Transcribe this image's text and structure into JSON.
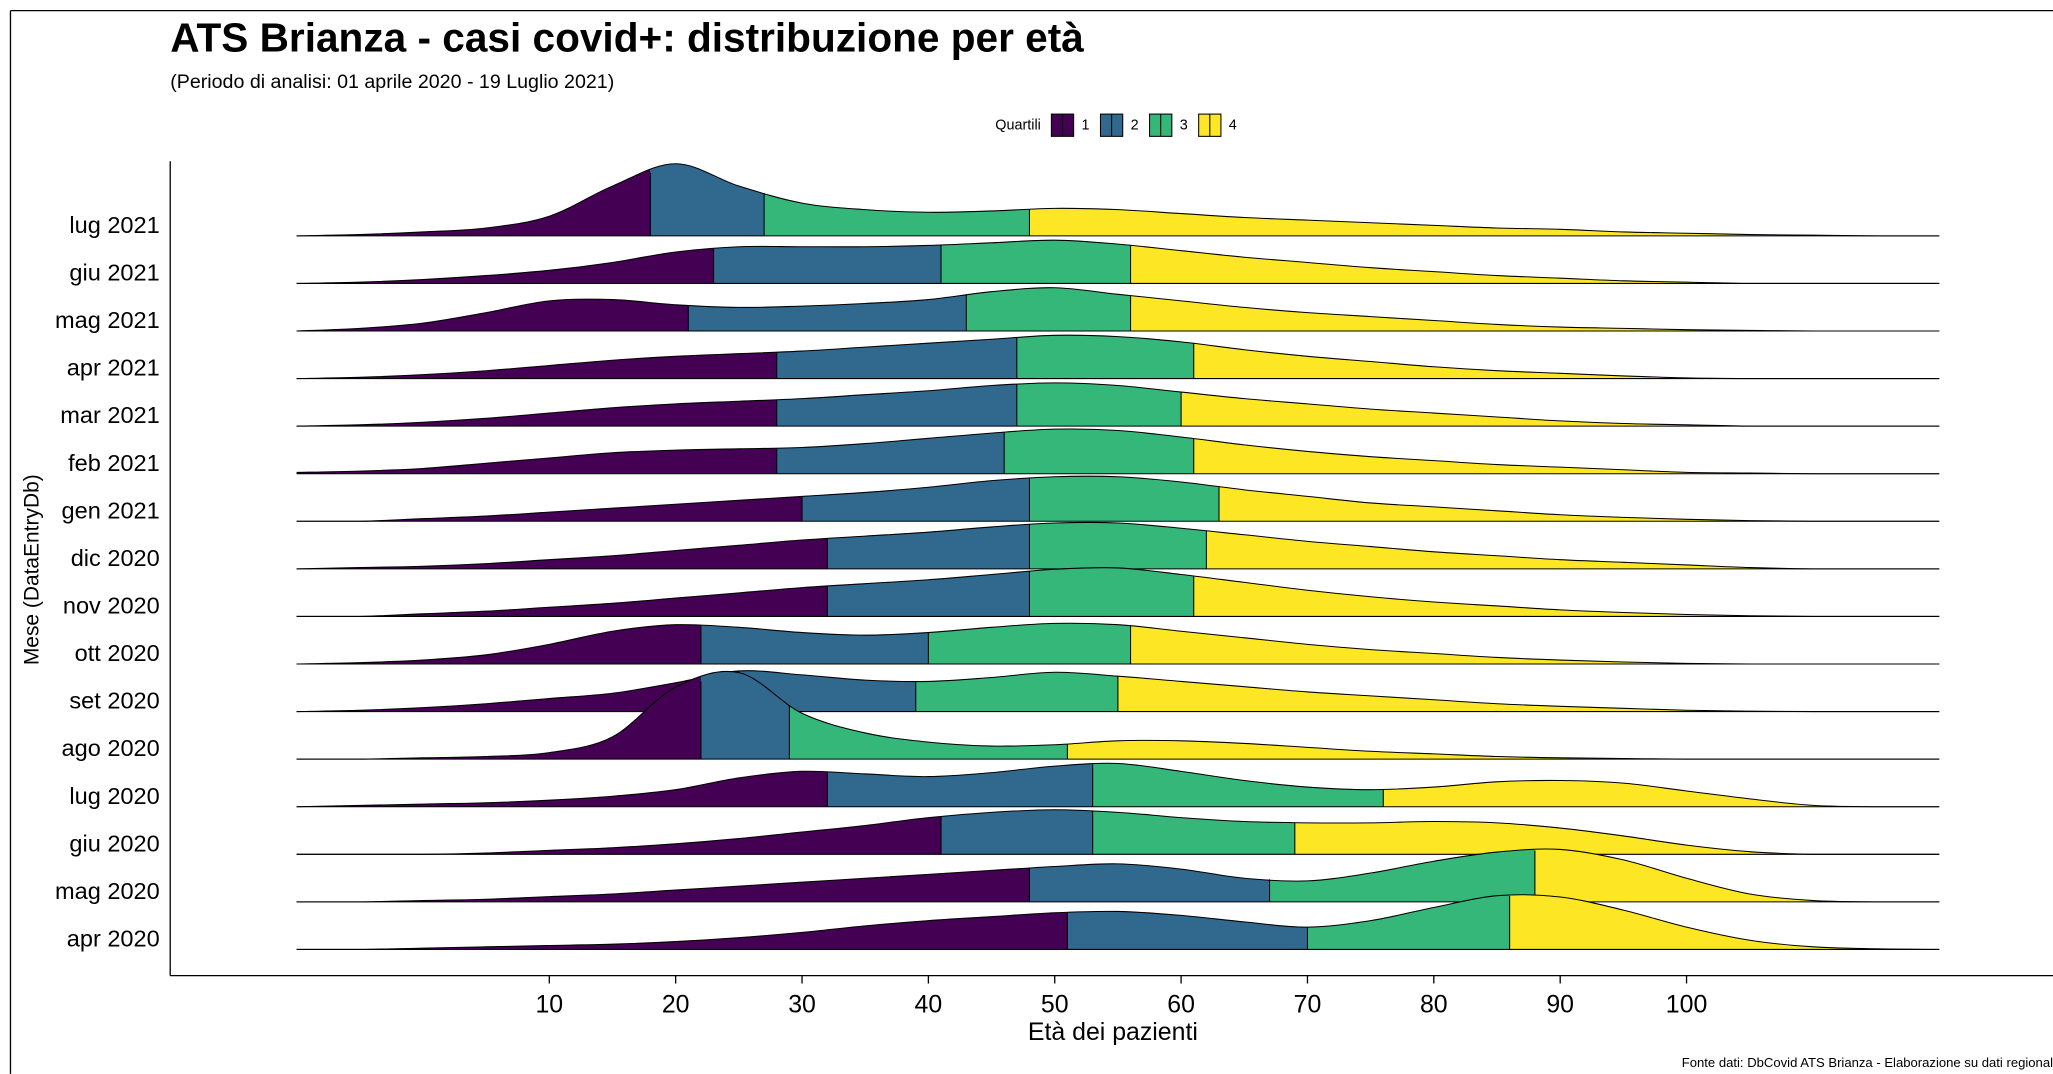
{
  "chart_data": {
    "type": "ridgeline",
    "title": "ATS Brianza - casi covid+: distribuzione per età",
    "subtitle": "(Periodo di analisi: 01 aprile 2020 - 19 Luglio 2021)",
    "caption": "Fonte dati: DbCovid ATS Brianza - Elaborazione su dati regional",
    "x_label": "Età dei pazienti",
    "y_label": "Mese (DataEntryDb)",
    "legend_title": "Quartili",
    "quartile_groups": [
      {
        "name": "1",
        "color": "#440154"
      },
      {
        "name": "2",
        "color": "#31688e"
      },
      {
        "name": "3",
        "color": "#35b779"
      },
      {
        "name": "4",
        "color": "#fde725"
      }
    ],
    "categories": [
      "apr 2020",
      "mag 2020",
      "giu 2020",
      "lug 2020",
      "ago 2020",
      "set 2020",
      "ott 2020",
      "nov 2020",
      "dic 2020",
      "gen 2021",
      "feb 2021",
      "mar 2021",
      "apr 2021",
      "mag 2021",
      "giu 2021",
      "lug 2021"
    ],
    "quartiles": [
      [
        51,
        70,
        86
      ],
      [
        48,
        67,
        88
      ],
      [
        41,
        53,
        69
      ],
      [
        32,
        53,
        76
      ],
      [
        22,
        29,
        51
      ],
      [
        25,
        39,
        55
      ],
      [
        22,
        40,
        56
      ],
      [
        32,
        48,
        61
      ],
      [
        32,
        48,
        62
      ],
      [
        30,
        48,
        63
      ],
      [
        28,
        46,
        61
      ],
      [
        28,
        47,
        60
      ],
      [
        28,
        47,
        61
      ],
      [
        21,
        43,
        56
      ],
      [
        23,
        41,
        56
      ],
      [
        18,
        27,
        48
      ]
    ],
    "x": [
      -10,
      -5,
      0,
      5,
      10,
      15,
      20,
      25,
      30,
      35,
      40,
      45,
      50,
      55,
      60,
      65,
      70,
      75,
      80,
      85,
      90,
      95,
      100,
      105,
      110,
      115,
      120
    ],
    "densities": [
      [
        0,
        0,
        1,
        2,
        3,
        4,
        6,
        9,
        13,
        18,
        22,
        25,
        28,
        29,
        26,
        21,
        17,
        22,
        32,
        41,
        40,
        30,
        17,
        7,
        2,
        0.5,
        0
      ],
      [
        0,
        0,
        1,
        2,
        4,
        6,
        9,
        12,
        15,
        18,
        21,
        24,
        27,
        29,
        25,
        18,
        16,
        22,
        31,
        38,
        40,
        32,
        18,
        6,
        1,
        0,
        0
      ],
      [
        0,
        0,
        0,
        1,
        3,
        5,
        8,
        12,
        17,
        22,
        28,
        32,
        34,
        32,
        28,
        25,
        24,
        24,
        25,
        24,
        20,
        14,
        7,
        2,
        0,
        0,
        0
      ],
      [
        0,
        1,
        2,
        3,
        5,
        8,
        13,
        22,
        27,
        25,
        23,
        26,
        31,
        33,
        27,
        20,
        15,
        13,
        15,
        19,
        20,
        18,
        12,
        6,
        1,
        0,
        0
      ],
      [
        0,
        0,
        1,
        2,
        5,
        17,
        55,
        66,
        35,
        20,
        13,
        10,
        11,
        14,
        14,
        12,
        9,
        6,
        4,
        2,
        1,
        0.5,
        0,
        0,
        0,
        0,
        0
      ],
      [
        0,
        1,
        3,
        6,
        10,
        14,
        22,
        31,
        28,
        24,
        23,
        26,
        30,
        27,
        23,
        19,
        15,
        12,
        9,
        6,
        4,
        2.5,
        1,
        0.3,
        0,
        0,
        0
      ],
      [
        0,
        1,
        3,
        7,
        15,
        25,
        30,
        28,
        24,
        22,
        24,
        28,
        31,
        30,
        25,
        20,
        15,
        11,
        8,
        5,
        3,
        1.5,
        0.5,
        0,
        0,
        0,
        0
      ],
      [
        0,
        0,
        2,
        4,
        7,
        10,
        14,
        18,
        22,
        25,
        28,
        32,
        36,
        37,
        32,
        26,
        20,
        15,
        11,
        8,
        5,
        3,
        1.5,
        0.5,
        0,
        0,
        0
      ],
      [
        0,
        1,
        2,
        4,
        7,
        10,
        14,
        18,
        22,
        25,
        28,
        32,
        35,
        35,
        31,
        26,
        21,
        17,
        13,
        10,
        7,
        5,
        3,
        1,
        0,
        0,
        0
      ],
      [
        0,
        0,
        2,
        4,
        7,
        10,
        13,
        16,
        19,
        22,
        26,
        31,
        34,
        34,
        30,
        24,
        19,
        14,
        11,
        8,
        5,
        3,
        1.5,
        0.5,
        0,
        0,
        0
      ],
      [
        1,
        2,
        4,
        8,
        12,
        16,
        18,
        19,
        20,
        23,
        27,
        31,
        34,
        33,
        28,
        22,
        17,
        13,
        10,
        7,
        5,
        3,
        1,
        0.5,
        0,
        0,
        0
      ],
      [
        0,
        1,
        3,
        6,
        10,
        14,
        17,
        19,
        21,
        24,
        27,
        31,
        33,
        31,
        26,
        21,
        17,
        13,
        10,
        7,
        4,
        2,
        1,
        0,
        0,
        0,
        0
      ],
      [
        0,
        1,
        3,
        6,
        10,
        14,
        17,
        19,
        21,
        24,
        27,
        30,
        33,
        32,
        28,
        22,
        17,
        13,
        9,
        6,
        4,
        2,
        0.5,
        0,
        0,
        0,
        0
      ],
      [
        0,
        2,
        6,
        14,
        23,
        24,
        20,
        18,
        19,
        21,
        24,
        30,
        33,
        28,
        23,
        18,
        14,
        11,
        8,
        5,
        3,
        2,
        1,
        0.5,
        0,
        0,
        0
      ],
      [
        0,
        1,
        3,
        6,
        10,
        16,
        24,
        28,
        28,
        28,
        29,
        31,
        33,
        30,
        25,
        20,
        16,
        12,
        9,
        6,
        4,
        2,
        1,
        0,
        0,
        0,
        0
      ],
      [
        0,
        1,
        3,
        6,
        15,
        38,
        55,
        38,
        25,
        20,
        18,
        19,
        21,
        20,
        17,
        14,
        12,
        10,
        8,
        6,
        5,
        3,
        2,
        1,
        0.5,
        0,
        0
      ]
    ],
    "xlim": [
      -20,
      129
    ],
    "xticks": [
      10,
      20,
      30,
      40,
      50,
      60,
      70,
      80,
      90,
      100
    ],
    "grid": false
  }
}
